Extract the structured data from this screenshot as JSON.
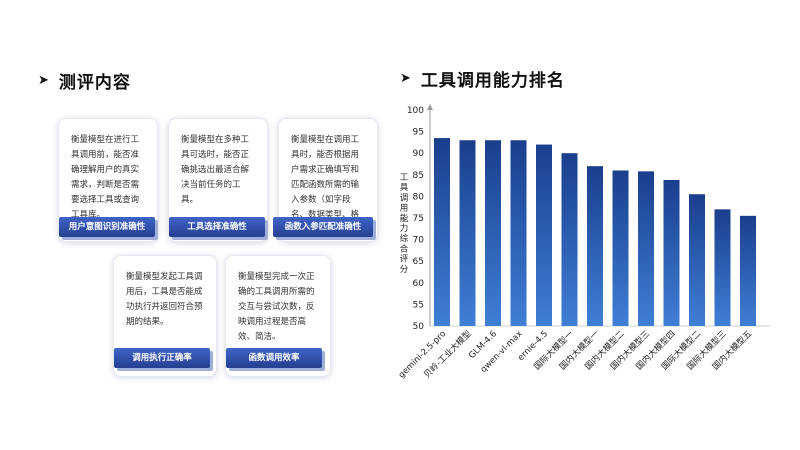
{
  "left_section": {
    "arrow": "➤",
    "title": "测评内容",
    "cards": [
      {
        "desc": "衡量模型在进行工具调用前，能否准确理解用户的真实需求，判断是否需要选择工具或查询工具库。",
        "tag": "用户意图识别准确性"
      },
      {
        "desc": "衡量模型在多种工具可选时，能否正确挑选出最适合解决当前任务的工具。",
        "tag": "工具选择准确性"
      },
      {
        "desc": "衡量模型在调用工具时，能否根据用户需求正确填写和匹配函数所需的输入参数（如字段名、数据类型、格式等）。",
        "tag": "函数入参匹配准确性"
      },
      {
        "desc": "衡量模型发起工具调用后，工具是否能成功执行并返回符合预期的结果。",
        "tag": "调用执行正确率"
      },
      {
        "desc": "衡量模型完成一次正确的工具调用所需的交互与尝试次数，反映调用过程是否高效、简洁。",
        "tag": "函数调用效率"
      }
    ]
  },
  "right_section": {
    "arrow": "➤",
    "title": "工具调用能力排名"
  },
  "chart_data": {
    "type": "bar",
    "categories": [
      "gemini-2.5-pro",
      "贝岭-工业大模型",
      "GLM-4.6",
      "qwen-vl-max",
      "ernie-4.5",
      "国际大模型一",
      "国内大模型一",
      "国内大模型二",
      "国内大模型三",
      "国内大模型四",
      "国际大模型二",
      "国际大模型三",
      "国内大模型五"
    ],
    "values": [
      93.5,
      93.0,
      93.0,
      93.0,
      92.0,
      90.0,
      87.0,
      86.0,
      85.8,
      83.8,
      80.5,
      77.0,
      75.5
    ],
    "ylabel": "工具调用能力综合评分",
    "ylim": [
      50,
      100
    ],
    "yticks": [
      50,
      55,
      60,
      65,
      70,
      75,
      80,
      85,
      90,
      95,
      100
    ],
    "grid": false,
    "colors": {
      "bar_top": "#1a3e8c",
      "bar_bottom": "#3f7fd6",
      "axis": "#999999"
    }
  }
}
